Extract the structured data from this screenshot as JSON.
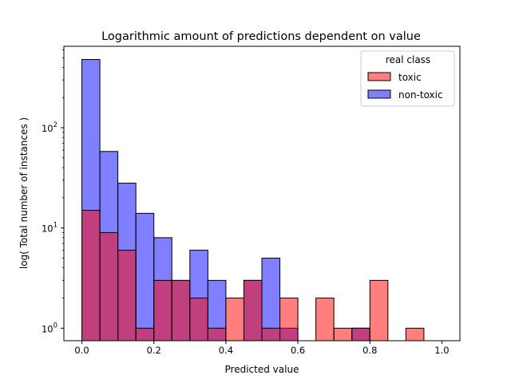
{
  "chart_data": {
    "type": "bar",
    "title": "Logarithmic amount of predictions dependent on value",
    "xlabel": "Predicted value",
    "ylabel": "log( Total number of instances )",
    "xlim": [
      -0.05,
      1.05
    ],
    "ylim": [
      0.75,
      650
    ],
    "yscale": "log",
    "bin_width": 0.05,
    "x_ticks": [
      {
        "value": 0.0,
        "label": "0.0"
      },
      {
        "value": 0.2,
        "label": "0.2"
      },
      {
        "value": 0.4,
        "label": "0.4"
      },
      {
        "value": 0.6,
        "label": "0.6"
      },
      {
        "value": 0.8,
        "label": "0.8"
      },
      {
        "value": 1.0,
        "label": "1.0"
      }
    ],
    "y_ticks": [
      {
        "value": 1,
        "base": "10",
        "exp": "0"
      },
      {
        "value": 10,
        "base": "10",
        "exp": "1"
      },
      {
        "value": 100,
        "base": "10",
        "exp": "2"
      }
    ],
    "legend": {
      "title": "real class",
      "position": "top-right"
    },
    "series": [
      {
        "name": "non-toxic",
        "color": "#0000ff",
        "bin_starts": [
          0.0,
          0.05,
          0.1,
          0.15,
          0.2,
          0.25,
          0.3,
          0.35,
          0.45,
          0.5,
          0.55,
          0.75
        ],
        "values": [
          480,
          58,
          28,
          14,
          8,
          3,
          6,
          3,
          3,
          5,
          1,
          1
        ]
      },
      {
        "name": "toxic",
        "color": "#ff0000",
        "bin_starts": [
          0.0,
          0.05,
          0.1,
          0.15,
          0.2,
          0.25,
          0.3,
          0.35,
          0.4,
          0.45,
          0.5,
          0.55,
          0.65,
          0.7,
          0.75,
          0.8,
          0.9
        ],
        "values": [
          15,
          9,
          6,
          1,
          3,
          3,
          2,
          1,
          2,
          3,
          1,
          2,
          2,
          1,
          1,
          3,
          1
        ]
      }
    ]
  }
}
